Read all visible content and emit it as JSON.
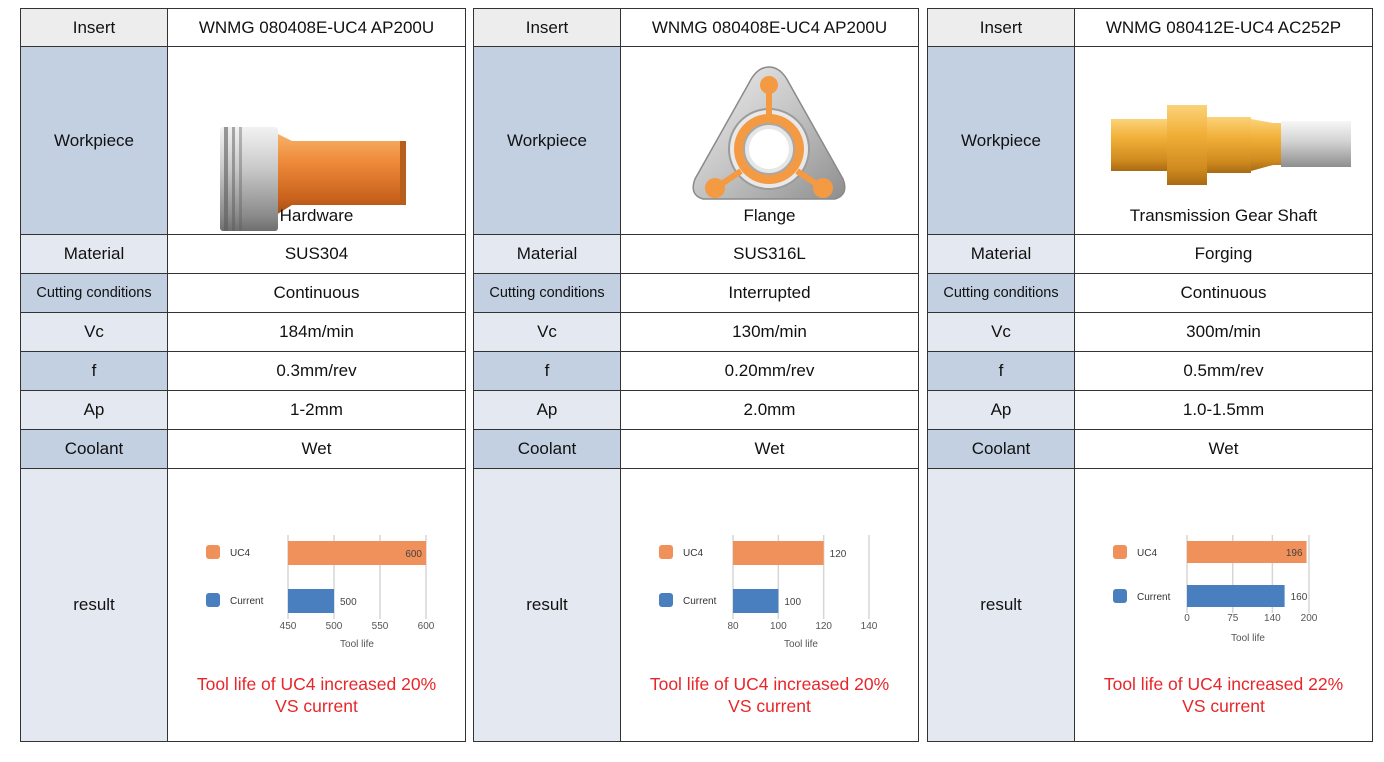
{
  "labels": {
    "insert": "Insert",
    "workpiece": "Workpiece",
    "material": "Material",
    "cutting": "Cutting conditions",
    "vc": "Vc",
    "f": "f",
    "ap": "Ap",
    "coolant": "Coolant",
    "result": "result"
  },
  "colors": {
    "uc4": "#f0905a",
    "current": "#4a7fbf",
    "summary": "#e8262a"
  },
  "panels": [
    {
      "insert": "WNMG 080408E-UC4 AP200U",
      "workpiece_name": "Hardware",
      "workpiece_icon": "hardware-part-icon",
      "material": "SUS304",
      "cutting": "Continuous",
      "vc": "184m/min",
      "f": "0.3mm/rev",
      "ap": "1-2mm",
      "coolant": "Wet",
      "summary1": "Tool life of UC4 increased 20%",
      "summary2": "VS current",
      "chart_data": {
        "type": "bar",
        "orientation": "horizontal",
        "categories": [
          "UC4",
          "Current"
        ],
        "values": [
          600,
          500
        ],
        "xlabel": "Tool life",
        "xlim": [
          450,
          600
        ],
        "xticks": [
          "450",
          "500",
          "550",
          "600"
        ],
        "value_labels": [
          "600",
          "500"
        ],
        "grid": true,
        "legend": "left"
      }
    },
    {
      "insert": "WNMG 080408E-UC4 AP200U",
      "workpiece_name": "Flange",
      "workpiece_icon": "flange-part-icon",
      "material": "SUS316L",
      "cutting": "Interrupted",
      "vc": "130m/min",
      "f": "0.20mm/rev",
      "ap": "2.0mm",
      "coolant": "Wet",
      "summary1": "Tool life of UC4 increased 20%",
      "summary2": "VS current",
      "chart_data": {
        "type": "bar",
        "orientation": "horizontal",
        "categories": [
          "UC4",
          "Current"
        ],
        "values": [
          120,
          100
        ],
        "xlabel": "Tool life",
        "xlim": [
          80,
          140
        ],
        "xticks": [
          "80",
          "100",
          "120",
          "140"
        ],
        "value_labels": [
          "120",
          "100"
        ],
        "grid": true,
        "legend": "left"
      }
    },
    {
      "insert": "WNMG 080412E-UC4 AC252P",
      "workpiece_name": "Transmission Gear Shaft",
      "workpiece_icon": "gear-shaft-part-icon",
      "material": "Forging",
      "cutting": "Continuous",
      "vc": "300m/min",
      "f": "0.5mm/rev",
      "ap": "1.0-1.5mm",
      "coolant": "Wet",
      "summary1": "Tool life of UC4 increased 22%",
      "summary2": "VS current",
      "chart_data": {
        "type": "bar",
        "orientation": "horizontal",
        "categories": [
          "UC4",
          "Current"
        ],
        "values": [
          196,
          160
        ],
        "xlabel": "Tool life",
        "xlim": [
          0,
          200
        ],
        "xticks": [
          "0",
          "75",
          "140",
          "200"
        ],
        "value_labels": [
          "196",
          "160"
        ],
        "grid": true,
        "legend": "left"
      }
    }
  ]
}
